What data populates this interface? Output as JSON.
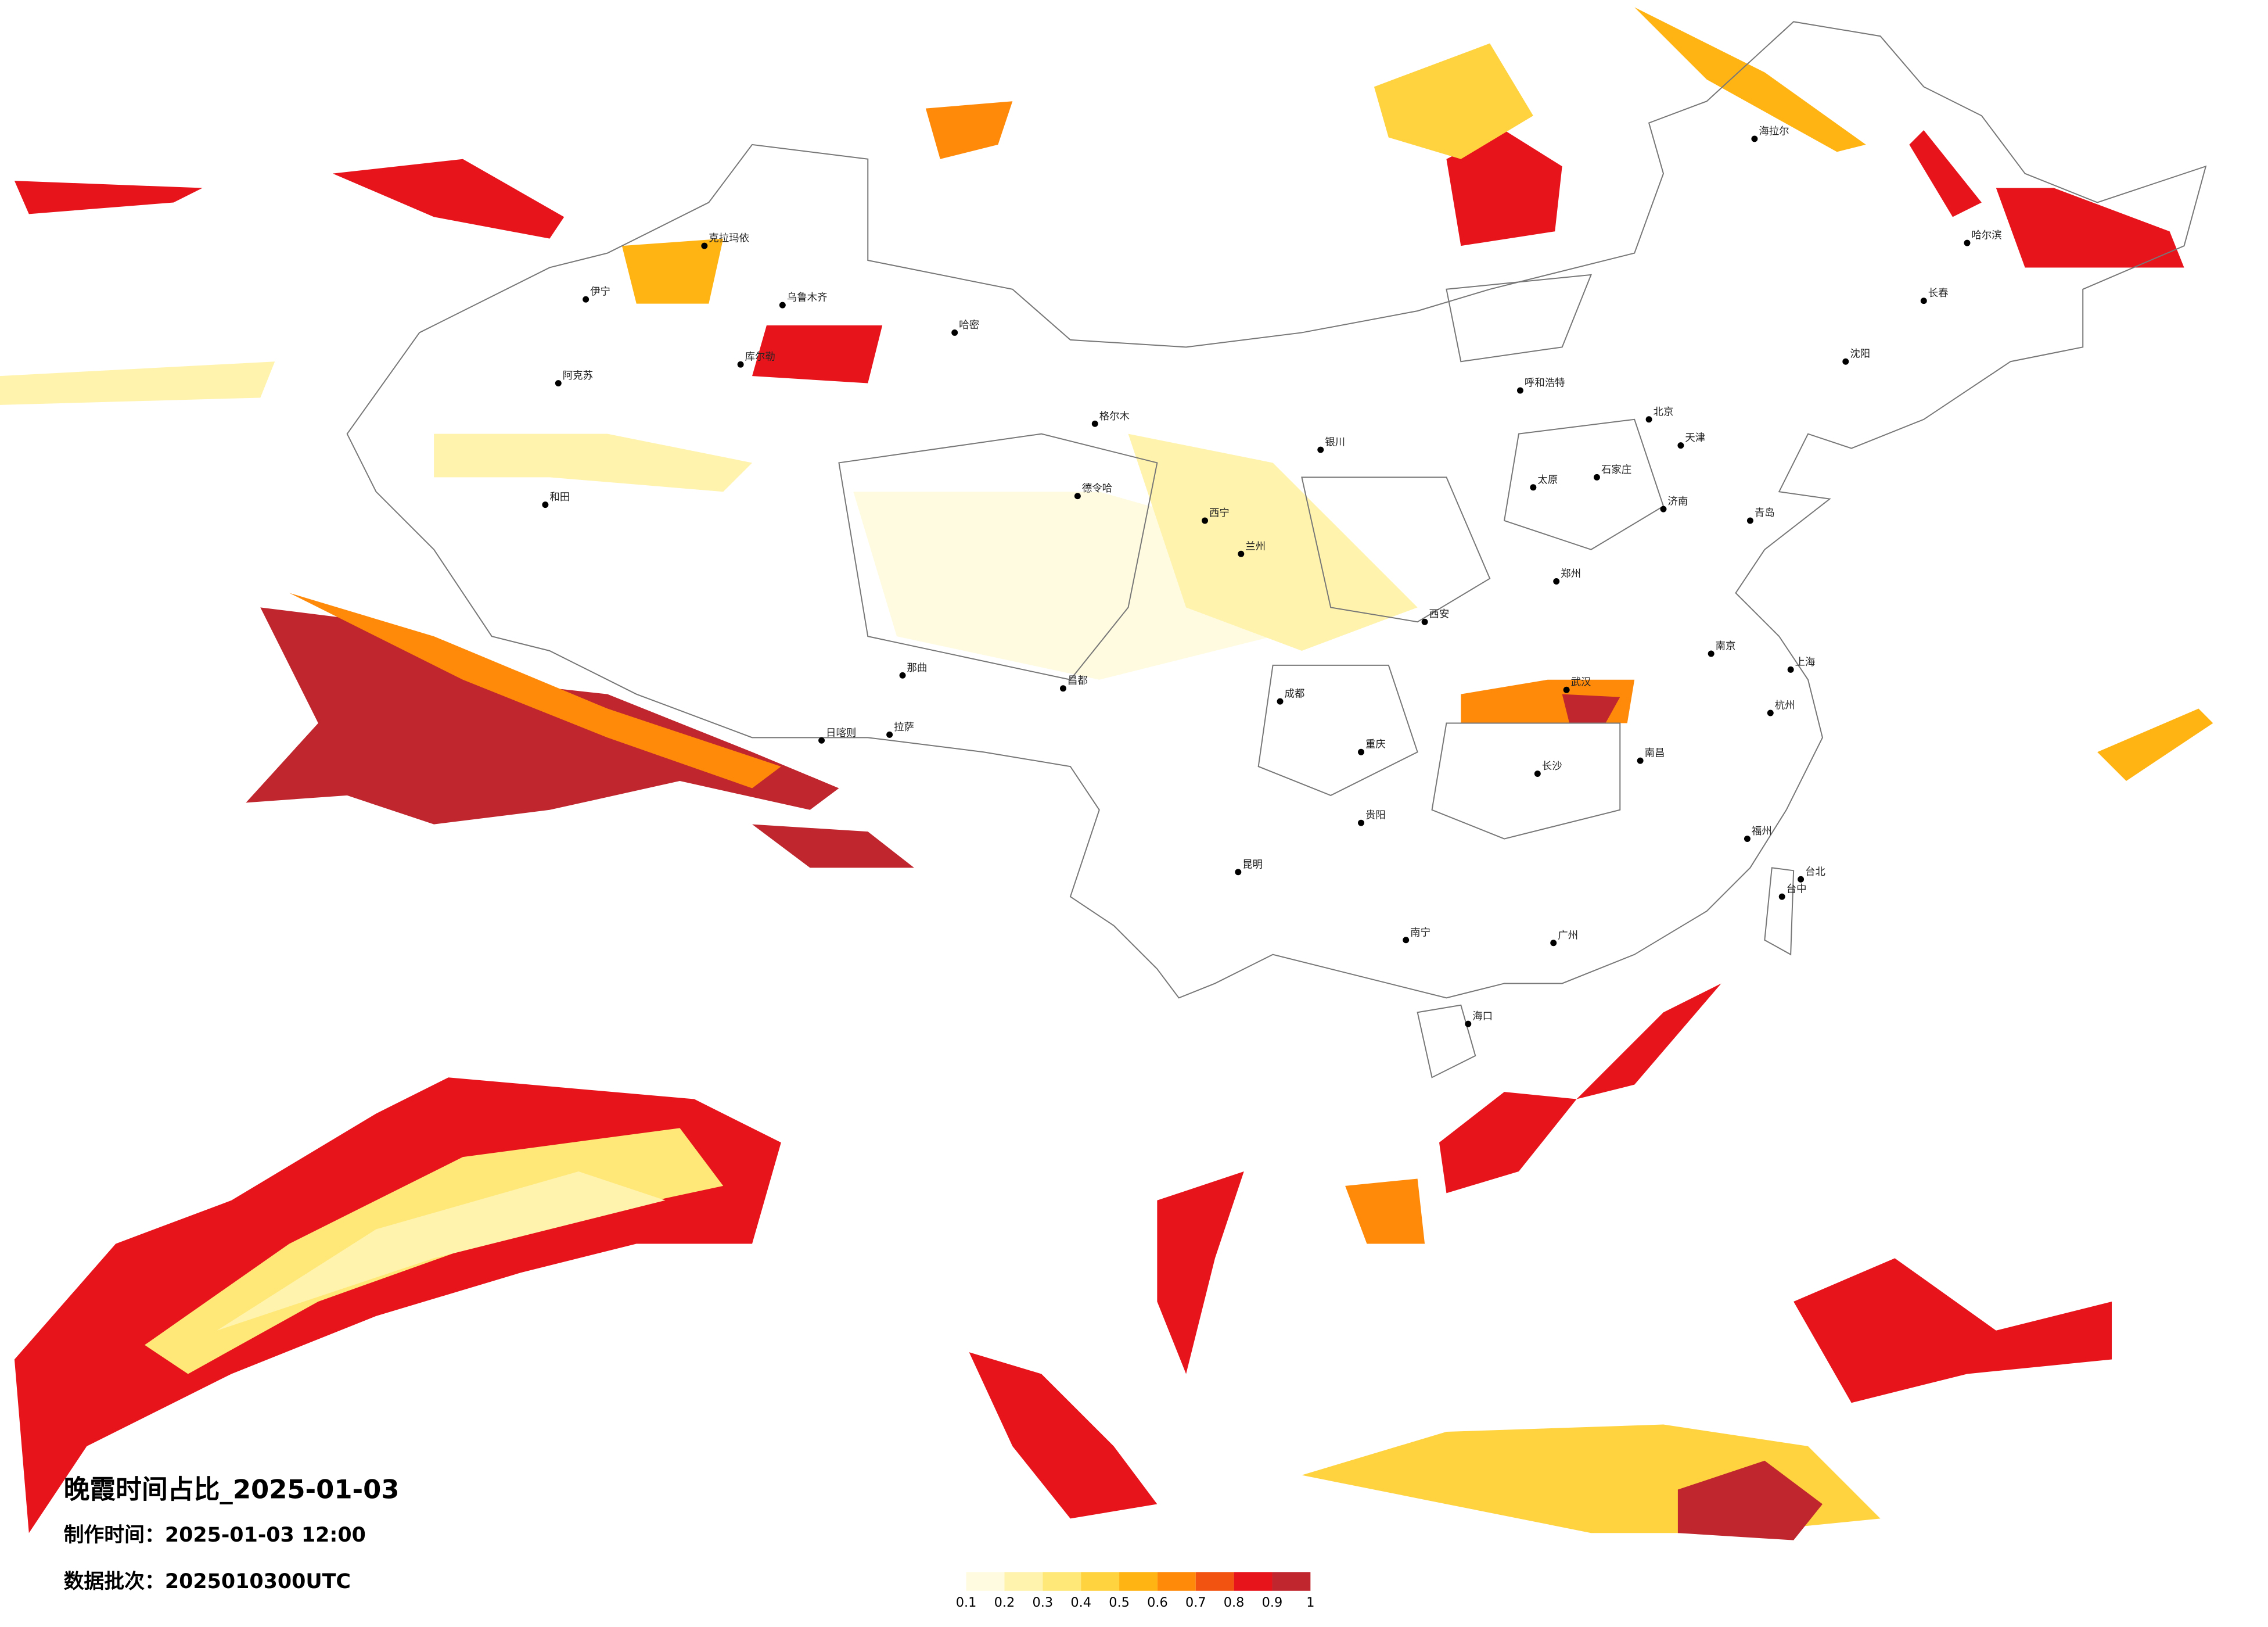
{
  "title": "晚霞时间占比_2025-01-03",
  "production_time": "制作时间：2025-01-03 12:00",
  "data_batch": "数据批次：2025010300UTC",
  "legend": {
    "colors": [
      "#fffbe0",
      "#fff3ad",
      "#ffe878",
      "#ffd23f",
      "#ffb414",
      "#ff8a0a",
      "#f25310",
      "#e8141c",
      "#c0262e"
    ],
    "ticks": [
      0.1,
      0.2,
      0.3,
      0.4,
      0.5,
      0.6,
      0.7,
      0.8,
      0.9,
      1
    ]
  },
  "cities": [
    "伊宁",
    "阿克苏",
    "和田",
    "库尔勒",
    "哈密",
    "克拉玛依",
    "乌鲁木齐",
    "格尔木",
    "德令哈",
    "日喀则",
    "拉萨",
    "那曲",
    "昌都",
    "西宁",
    "兰州",
    "银川",
    "呼和浩特",
    "北京",
    "天津",
    "石家庄",
    "太原",
    "西安",
    "郑州",
    "济南",
    "青岛",
    "南京",
    "上海",
    "杭州",
    "武汉",
    "长沙",
    "南昌",
    "福州",
    "广州",
    "南宁",
    "海口",
    "贵阳",
    "昆明",
    "成都",
    "重庆",
    "哈尔滨",
    "长春",
    "沈阳",
    "海拉尔",
    "台北",
    "台中"
  ]
}
